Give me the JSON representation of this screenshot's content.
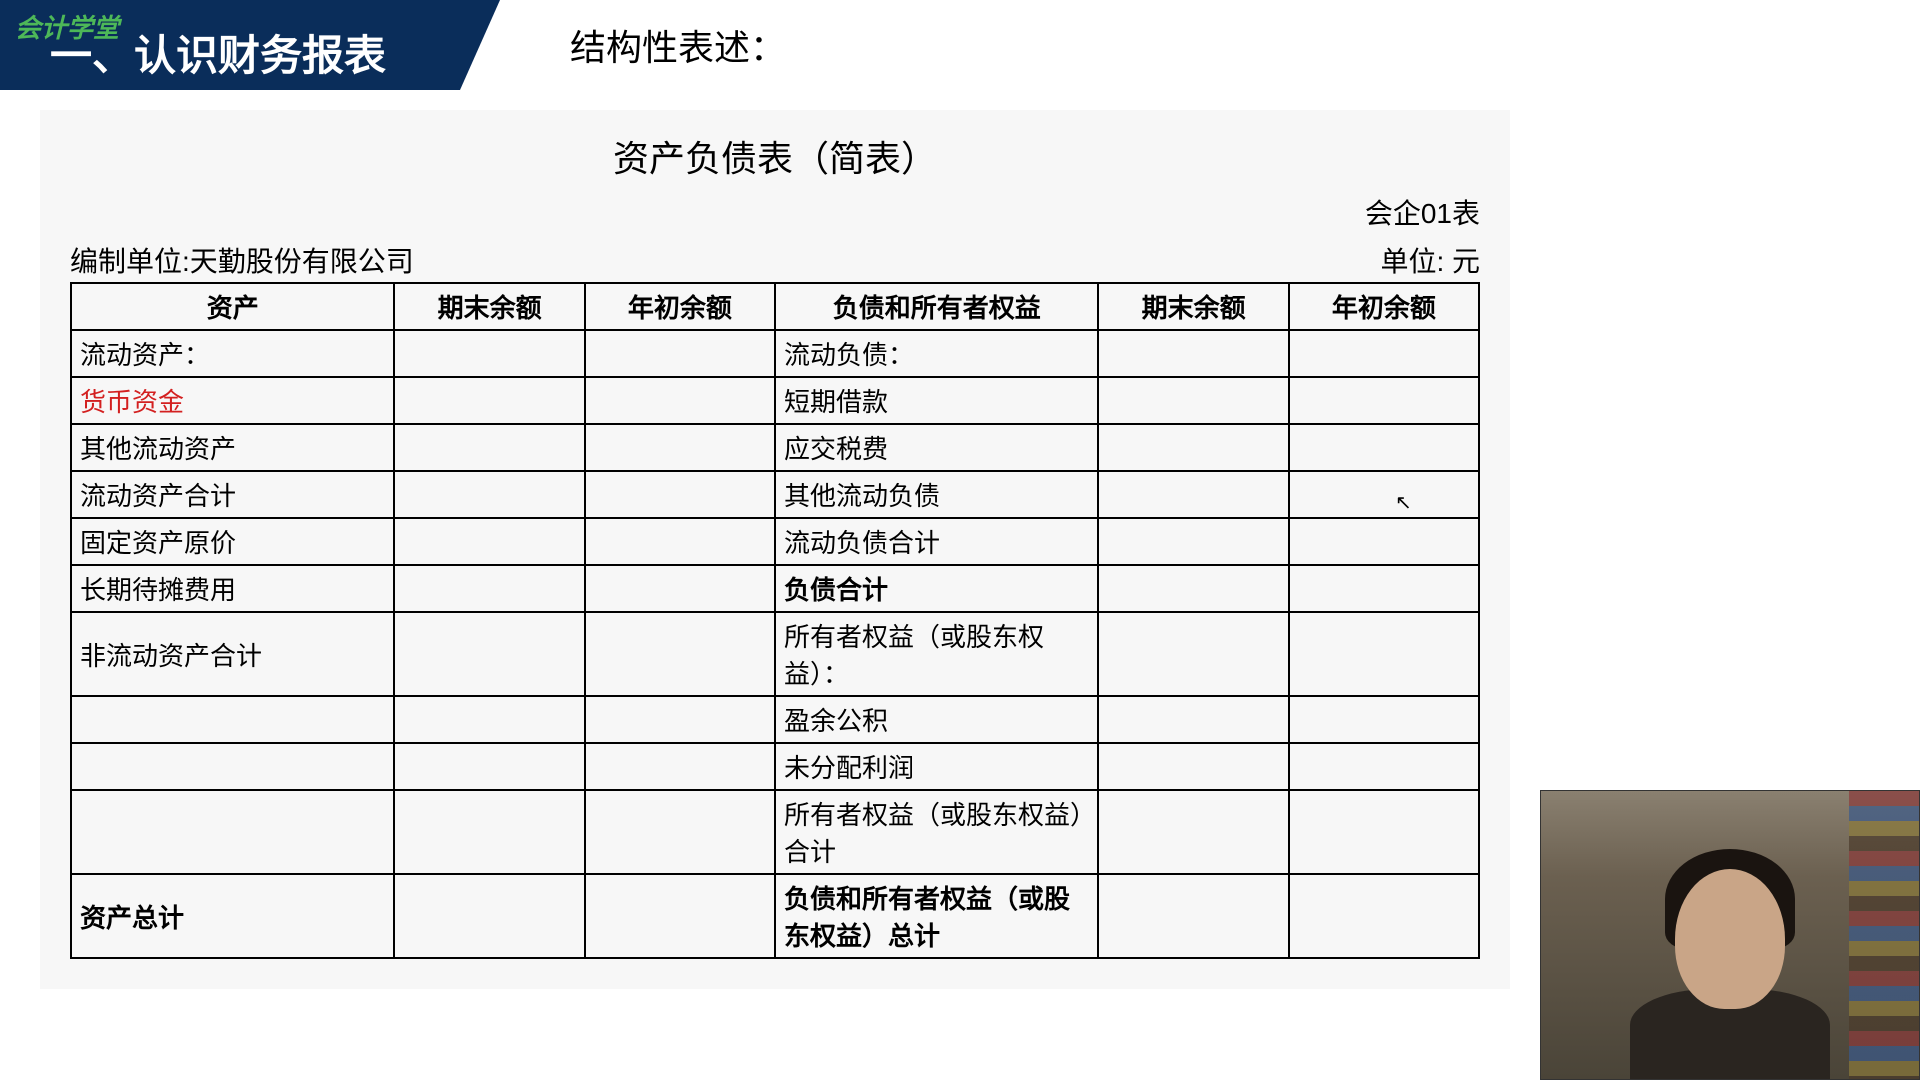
{
  "header": {
    "logo": "会计学堂",
    "section_title": "一、认识财务报表",
    "subtitle": "结构性表述："
  },
  "table": {
    "title": "资产负债表（简表）",
    "form_number": "会企01表",
    "company_label": "编制单位:天勤股份有限公司",
    "unit_label": "单位: 元",
    "headers": {
      "assets": "资产",
      "end_balance": "期末余额",
      "begin_balance": "年初余额",
      "liab_equity": "负债和所有者权益",
      "end_balance2": "期末余额",
      "begin_balance2": "年初余额"
    },
    "rows": [
      {
        "asset": "流动资产：",
        "liab": "流动负债："
      },
      {
        "asset": "货币资金",
        "asset_red": true,
        "liab": "短期借款"
      },
      {
        "asset": "其他流动资产",
        "liab": "应交税费"
      },
      {
        "asset": "流动资产合计",
        "liab": "其他流动负债"
      },
      {
        "asset": "固定资产原价",
        "liab": "流动负债合计"
      },
      {
        "asset": "长期待摊费用",
        "liab": "负债合计",
        "liab_bold": true
      },
      {
        "asset": "非流动资产合计",
        "liab": "所有者权益（或股东权益）：",
        "tall": true
      },
      {
        "asset": "",
        "liab": "盈余公积"
      },
      {
        "asset": "",
        "liab": "未分配利润"
      },
      {
        "asset": "",
        "liab": "所有者权益（或股东权益）合计",
        "tall": true
      },
      {
        "asset": "资产总计",
        "asset_bold": true,
        "liab": "负债和所有者权益（或股东权益）总计",
        "liab_bold": true,
        "taller": true
      }
    ]
  },
  "colors": {
    "banner_bg": "#0a2d5a",
    "logo_green": "#4db858",
    "content_bg": "#f7f7f7",
    "red_text": "#d32020",
    "border": "#000000"
  }
}
